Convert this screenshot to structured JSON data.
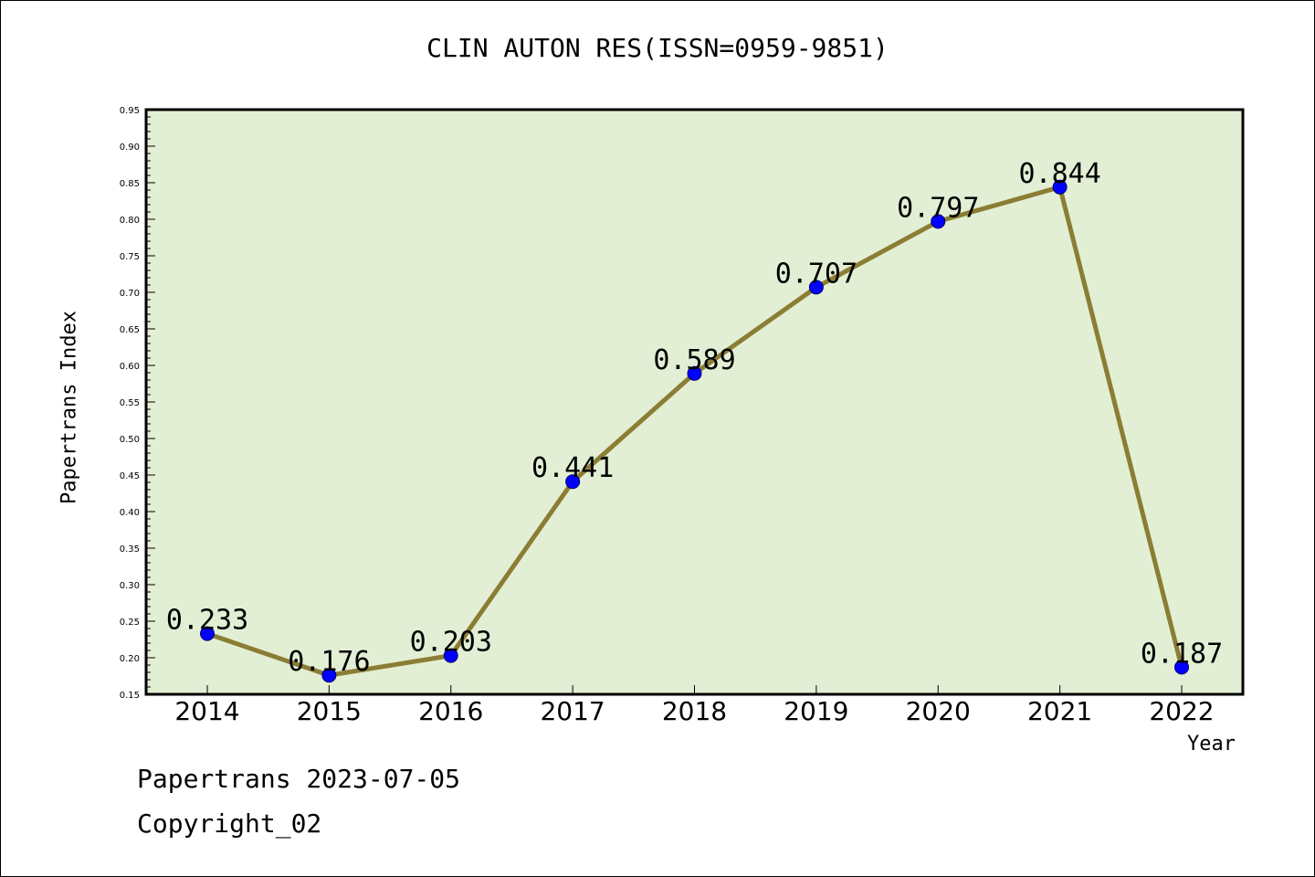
{
  "title": "CLIN AUTON RES(ISSN=0959-9851)",
  "footer": {
    "date_line": "Papertrans 2023-07-05",
    "copyright": "Copyright_02"
  },
  "colors": {
    "plot_background": "#e2efd4",
    "line": "#8b7d34",
    "marker": "#0000ff"
  },
  "chart_data": {
    "type": "line",
    "title": "CLIN AUTON RES(ISSN=0959-9851)",
    "xlabel": "Year",
    "ylabel": "Papertrans Index",
    "categories": [
      "2014",
      "2015",
      "2016",
      "2017",
      "2018",
      "2019",
      "2020",
      "2021",
      "2022"
    ],
    "values": [
      0.233,
      0.176,
      0.203,
      0.441,
      0.589,
      0.707,
      0.797,
      0.844,
      0.187
    ],
    "data_labels": [
      "0.233",
      "0.176",
      "0.203",
      "0.441",
      "0.589",
      "0.707",
      "0.797",
      "0.844",
      "0.187"
    ],
    "ylim": [
      0.15,
      0.95
    ],
    "y_ticks": [
      "0.15",
      "0.20",
      "0.25",
      "0.30",
      "0.35",
      "0.40",
      "0.45",
      "0.50",
      "0.55",
      "0.60",
      "0.65",
      "0.70",
      "0.75",
      "0.80",
      "0.85",
      "0.90",
      "0.95"
    ],
    "grid": false,
    "legend": "none"
  }
}
